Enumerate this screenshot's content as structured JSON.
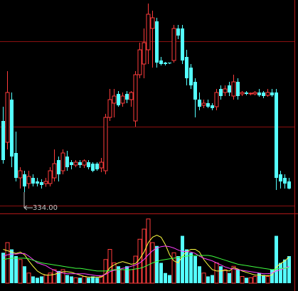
{
  "chart_data": [
    {
      "type": "candlestick",
      "up_color": "#ff3c3c",
      "down_color": "#54ffff",
      "grid": true,
      "grid_color": "#8b1010",
      "ylim": [
        322,
        442
      ],
      "yticks": [
        371,
        419
      ],
      "open": [
        374,
        362,
        386,
        356,
        342,
        344,
        338.8,
        342,
        340,
        339.6,
        338.8,
        338.8,
        342,
        352,
        346,
        354,
        350.8,
        349.2,
        350.8,
        349.2,
        350.8,
        350,
        350,
        347.6,
        346,
        376,
        384,
        389.2,
        384,
        389.2,
        386,
        374,
        400,
        406,
        414,
        426,
        430,
        408,
        406.8,
        406.8,
        408,
        426,
        426,
        410,
        404,
        396,
        386,
        382.8,
        384,
        382.8,
        382,
        392,
        390,
        394,
        388,
        396,
        389.2,
        390,
        389.2,
        389.2,
        390,
        390,
        388.4,
        390,
        390,
        344,
        342,
        340
      ],
      "high": [
        382,
        402,
        390,
        368,
        348,
        346,
        346,
        344,
        342,
        341.2,
        342,
        348,
        358,
        354,
        358,
        357.2,
        352,
        352,
        352,
        352.4,
        352,
        350.8,
        350.8,
        353.2,
        378,
        392,
        392,
        390.8,
        390,
        390.8,
        390.8,
        402,
        418,
        426,
        440,
        436,
        432,
        410,
        407.2,
        406.8,
        428,
        428,
        428,
        414,
        406,
        398,
        390,
        386,
        386,
        384,
        392,
        394,
        394,
        396,
        400,
        398,
        390.8,
        390.8,
        390,
        390.8,
        392,
        390.8,
        392,
        392,
        392,
        346,
        344,
        342
      ],
      "low": [
        350,
        358,
        348,
        340,
        336,
        334,
        336,
        337.2,
        337.2,
        336,
        337,
        337.2,
        340,
        340,
        344,
        346,
        346.8,
        348,
        347.6,
        347.6,
        346.8,
        345.2,
        346,
        345.2,
        344,
        374,
        376,
        382,
        382,
        384,
        382,
        370.8,
        398,
        398,
        406,
        404,
        404,
        405.2,
        405.2,
        406,
        406.8,
        420,
        406,
        394,
        392,
        376,
        380,
        381.2,
        381.2,
        380,
        380,
        386,
        388,
        388,
        386,
        386,
        388,
        388.4,
        388.4,
        388.4,
        387.6,
        386.8,
        387.6,
        387.6,
        335.2,
        336,
        336,
        335.6
      ],
      "close": [
        352,
        390,
        354,
        342,
        346,
        337.2,
        342.8,
        338.8,
        338.8,
        338,
        340,
        346,
        350,
        344,
        356,
        348,
        349.2,
        350.8,
        349.2,
        351.6,
        348,
        346,
        346.8,
        350.8,
        376,
        386,
        388,
        382.8,
        388,
        386,
        390,
        400,
        414,
        418,
        434,
        432,
        406.8,
        406,
        406,
        406.4,
        426,
        422,
        408,
        398,
        394,
        386,
        382,
        384,
        382,
        381.2,
        390,
        388,
        392,
        390,
        396,
        388,
        390,
        389.2,
        389.6,
        390,
        388.4,
        388,
        390,
        388.4,
        342,
        340,
        338.8,
        336
      ],
      "annotations": [
        {
          "value": 334,
          "label": "334.00"
        }
      ]
    },
    {
      "type": "volume",
      "ylim": [
        0,
        100
      ],
      "values": [
        45,
        60,
        50,
        40,
        35,
        25,
        15,
        10,
        8,
        10,
        12,
        15,
        20,
        18,
        20,
        12,
        10,
        8,
        8,
        10,
        8,
        10,
        8,
        10,
        35,
        50,
        30,
        25,
        20,
        25,
        20,
        40,
        65,
        80,
        95,
        60,
        55,
        30,
        15,
        12,
        45,
        40,
        70,
        50,
        45,
        40,
        25,
        15,
        10,
        12,
        30,
        25,
        20,
        15,
        25,
        20,
        10,
        8,
        8,
        10,
        15,
        12,
        10,
        20,
        70,
        30,
        35,
        40
      ],
      "series": [
        {
          "color": "#ffff40",
          "values": [
            50,
            48,
            46,
            44,
            46,
            42,
            33,
            25,
            18,
            14,
            12,
            12,
            13,
            15,
            17,
            17,
            16,
            14,
            12,
            10,
            9,
            9,
            9,
            9,
            14,
            23,
            27,
            30,
            32,
            30,
            28,
            29,
            36,
            46,
            60,
            68,
            71,
            68,
            57,
            42,
            33,
            30,
            40,
            47,
            50,
            50,
            46,
            35,
            27,
            20,
            18,
            18,
            19,
            18,
            23,
            21,
            18,
            16,
            14,
            12,
            12,
            11,
            11,
            12,
            24,
            29,
            33,
            39
          ]
        },
        {
          "color": "#ff40ff",
          "values": [
            40,
            42,
            43,
            43,
            44,
            44,
            40,
            35,
            30,
            28,
            26,
            22,
            19,
            16,
            15,
            14,
            14,
            14,
            14,
            14,
            13,
            12,
            11,
            11,
            13,
            17,
            19,
            20,
            22,
            23,
            25,
            27,
            30,
            35,
            42,
            48,
            52,
            54,
            55,
            54,
            52,
            49,
            47,
            47,
            46,
            44,
            40,
            37,
            35,
            33,
            30,
            27,
            24,
            22,
            21,
            20,
            19,
            18,
            17,
            16,
            15,
            14,
            14,
            15,
            18,
            20,
            22,
            25
          ]
        },
        {
          "color": "#40ff40",
          "values": [
            35,
            36,
            37,
            37,
            37,
            37,
            36,
            34,
            32,
            30,
            29,
            28,
            27,
            26,
            25,
            24,
            23,
            22,
            22,
            21,
            20,
            19,
            18,
            18,
            18,
            19,
            20,
            20,
            20,
            20,
            20,
            21,
            22,
            24,
            27,
            30,
            32,
            34,
            35,
            36,
            37,
            38,
            39,
            40,
            41,
            41,
            41,
            41,
            41,
            40,
            38,
            36,
            34,
            32,
            30,
            28,
            27,
            26,
            25,
            24,
            23,
            22,
            21,
            20,
            21,
            22,
            22,
            23
          ]
        }
      ]
    }
  ]
}
